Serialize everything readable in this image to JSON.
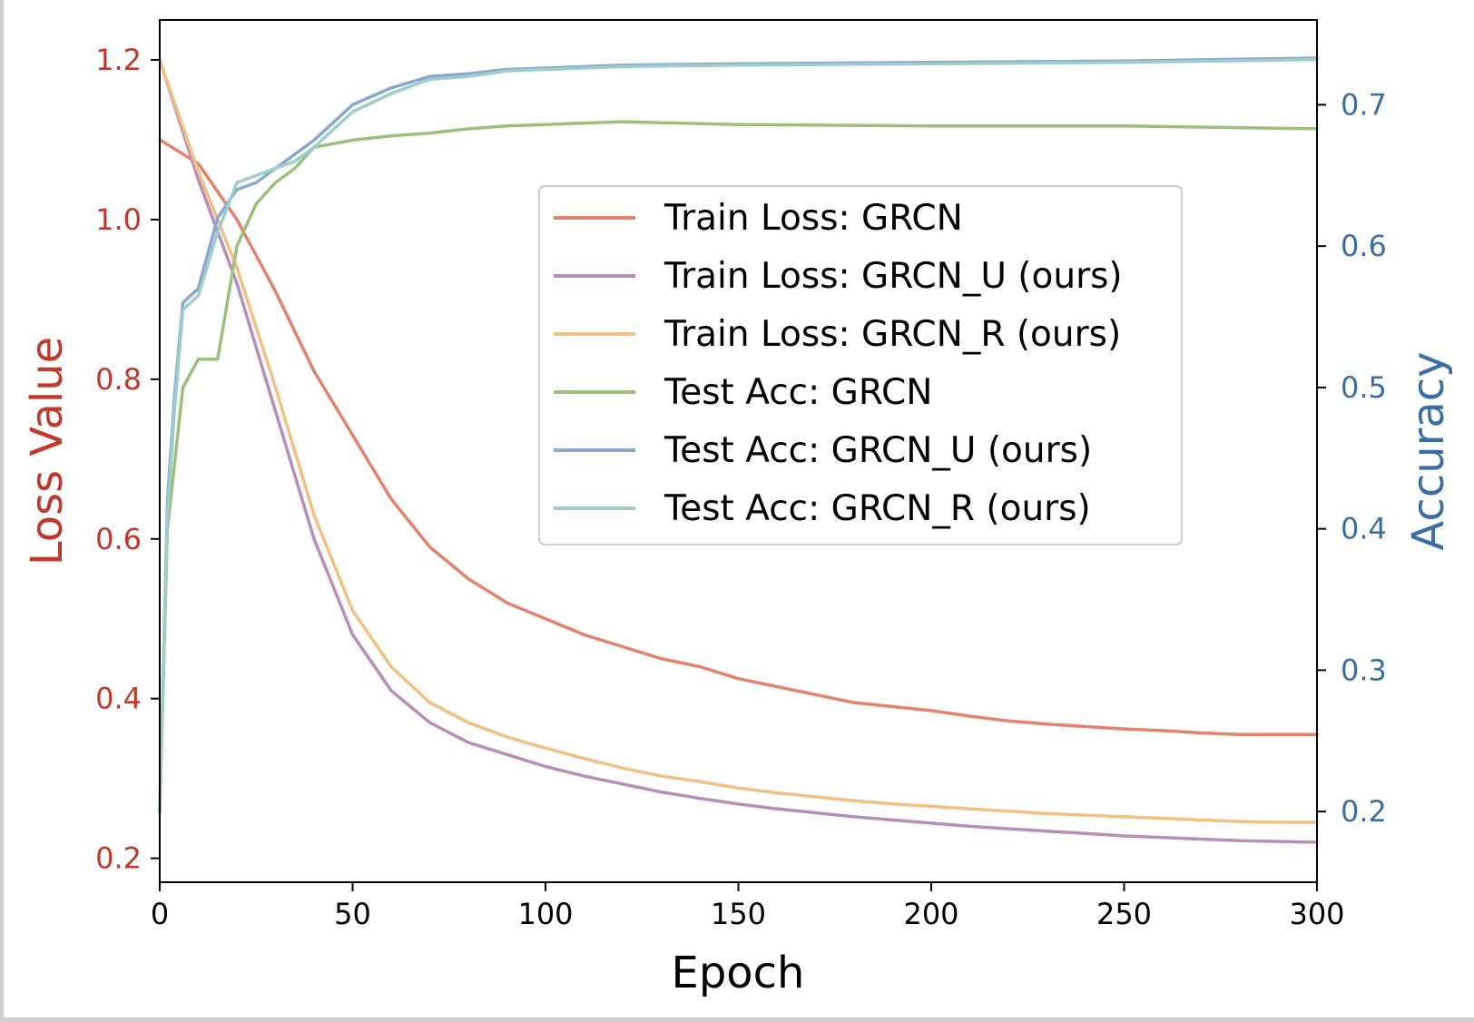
{
  "chart_data": {
    "type": "line",
    "xlabel": "Epoch",
    "ylabel_left": "Loss Value",
    "ylabel_right": "Accuracy",
    "xlim": [
      0,
      300
    ],
    "ylim_left": [
      0.17,
      1.25
    ],
    "ylim_right": [
      0.15,
      0.76
    ],
    "x_ticks": [
      0,
      50,
      100,
      150,
      200,
      250,
      300
    ],
    "y_ticks_left": [
      0.2,
      0.4,
      0.6,
      0.8,
      1.0,
      1.2
    ],
    "y_ticks_right": [
      0.2,
      0.3,
      0.4,
      0.5,
      0.6,
      0.7
    ],
    "legend_position": "center-right",
    "grid": false,
    "axis_colors": {
      "left": "#c0392b",
      "right": "#3a6ea5"
    },
    "series": [
      {
        "name": "Train Loss: GRCN",
        "axis": "left",
        "color": "#e5826e",
        "x": [
          0,
          10,
          20,
          30,
          40,
          50,
          60,
          70,
          80,
          90,
          100,
          110,
          120,
          130,
          140,
          150,
          160,
          170,
          180,
          190,
          200,
          210,
          220,
          230,
          240,
          250,
          260,
          270,
          280,
          290,
          300
        ],
        "y": [
          1.1,
          1.07,
          1.0,
          0.91,
          0.81,
          0.73,
          0.65,
          0.59,
          0.55,
          0.52,
          0.5,
          0.48,
          0.465,
          0.45,
          0.44,
          0.425,
          0.415,
          0.405,
          0.395,
          0.39,
          0.385,
          0.378,
          0.372,
          0.368,
          0.365,
          0.362,
          0.36,
          0.357,
          0.355,
          0.355,
          0.355
        ]
      },
      {
        "name": "Train Loss: GRCN_U (ours)",
        "axis": "left",
        "color": "#b78eb8",
        "x": [
          0,
          10,
          20,
          30,
          40,
          50,
          60,
          70,
          80,
          90,
          100,
          110,
          120,
          130,
          140,
          150,
          160,
          170,
          180,
          190,
          200,
          210,
          220,
          230,
          240,
          250,
          260,
          270,
          280,
          290,
          300
        ],
        "y": [
          1.2,
          1.05,
          0.92,
          0.76,
          0.6,
          0.48,
          0.41,
          0.37,
          0.345,
          0.33,
          0.315,
          0.303,
          0.293,
          0.283,
          0.275,
          0.268,
          0.262,
          0.257,
          0.252,
          0.248,
          0.244,
          0.24,
          0.237,
          0.234,
          0.231,
          0.228,
          0.226,
          0.224,
          0.222,
          0.221,
          0.22
        ]
      },
      {
        "name": "Train Loss: GRCN_R (ours)",
        "axis": "left",
        "color": "#f2c083",
        "x": [
          0,
          10,
          20,
          30,
          40,
          50,
          60,
          70,
          80,
          90,
          100,
          110,
          120,
          130,
          140,
          150,
          160,
          170,
          180,
          190,
          200,
          210,
          220,
          230,
          240,
          250,
          260,
          270,
          280,
          290,
          300
        ],
        "y": [
          1.2,
          1.06,
          0.94,
          0.79,
          0.63,
          0.51,
          0.44,
          0.395,
          0.37,
          0.352,
          0.338,
          0.325,
          0.313,
          0.303,
          0.296,
          0.288,
          0.282,
          0.277,
          0.272,
          0.268,
          0.265,
          0.262,
          0.259,
          0.256,
          0.254,
          0.252,
          0.25,
          0.248,
          0.246,
          0.245,
          0.245
        ]
      },
      {
        "name": "Test Acc: GRCN",
        "axis": "right",
        "color": "#9dbf7c",
        "x": [
          0,
          2,
          4,
          6,
          8,
          10,
          15,
          20,
          25,
          30,
          35,
          40,
          50,
          60,
          70,
          80,
          90,
          100,
          120,
          150,
          200,
          250,
          300
        ],
        "y": [
          0.2,
          0.4,
          0.45,
          0.5,
          0.51,
          0.52,
          0.52,
          0.6,
          0.63,
          0.645,
          0.655,
          0.67,
          0.675,
          0.678,
          0.68,
          0.683,
          0.685,
          0.686,
          0.688,
          0.686,
          0.685,
          0.685,
          0.683
        ]
      },
      {
        "name": "Test Acc: GRCN_U (ours)",
        "axis": "right",
        "color": "#8aa8cf",
        "x": [
          0,
          2,
          4,
          6,
          8,
          10,
          15,
          20,
          25,
          30,
          35,
          40,
          50,
          60,
          70,
          80,
          90,
          100,
          120,
          150,
          200,
          250,
          300
        ],
        "y": [
          0.2,
          0.42,
          0.5,
          0.56,
          0.565,
          0.57,
          0.62,
          0.64,
          0.645,
          0.655,
          0.665,
          0.675,
          0.7,
          0.712,
          0.72,
          0.722,
          0.725,
          0.726,
          0.728,
          0.729,
          0.73,
          0.731,
          0.733
        ]
      },
      {
        "name": "Test Acc: GRCN_R (ours)",
        "axis": "right",
        "color": "#9fcdca",
        "x": [
          0,
          2,
          4,
          6,
          8,
          10,
          15,
          20,
          25,
          30,
          35,
          40,
          50,
          60,
          70,
          80,
          90,
          100,
          120,
          150,
          200,
          250,
          300
        ],
        "y": [
          0.2,
          0.41,
          0.49,
          0.555,
          0.56,
          0.565,
          0.61,
          0.645,
          0.65,
          0.655,
          0.66,
          0.67,
          0.695,
          0.708,
          0.718,
          0.72,
          0.724,
          0.725,
          0.727,
          0.728,
          0.729,
          0.73,
          0.732
        ]
      }
    ]
  }
}
